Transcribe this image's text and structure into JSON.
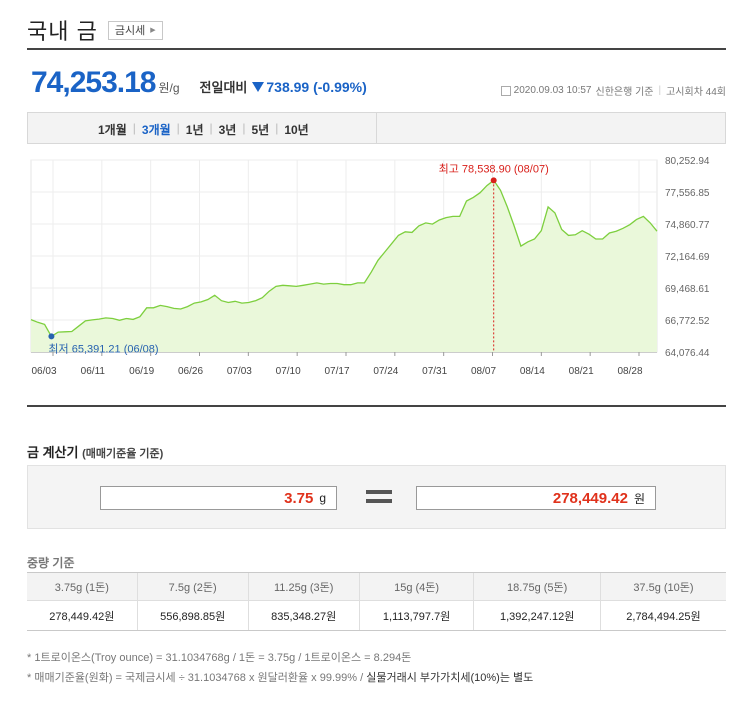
{
  "header": {
    "title": "국내 금",
    "link_label": "금시세"
  },
  "price": {
    "value": "74,253.18",
    "unit": "원/g",
    "compare_label": "전일대비",
    "compare_value": "738.99 (-0.99%)",
    "direction": "down",
    "timestamp": "2020.09.03 10:57",
    "source": "신한은행 기준",
    "round": "고시회차 44회"
  },
  "periods": [
    {
      "label": "1개월",
      "active": false
    },
    {
      "label": "3개월",
      "active": true
    },
    {
      "label": "1년",
      "active": false
    },
    {
      "label": "3년",
      "active": false
    },
    {
      "label": "5년",
      "active": false
    },
    {
      "label": "10년",
      "active": false
    }
  ],
  "chart_data": {
    "type": "area",
    "x_labels": [
      "06/03",
      "06/11",
      "06/19",
      "06/26",
      "07/03",
      "07/10",
      "07/17",
      "07/24",
      "07/31",
      "08/07",
      "08/14",
      "08/21",
      "08/28"
    ],
    "y_ticks": [
      "80,252.94",
      "77,556.85",
      "74,860.77",
      "72,164.69",
      "69,468.61",
      "66,772.52",
      "64,076.44"
    ],
    "ylim": [
      64076.44,
      80252.94
    ],
    "values": [
      66810,
      66580,
      66400,
      65391.21,
      65750,
      65780,
      65800,
      66250,
      66700,
      66780,
      66850,
      66950,
      66900,
      66750,
      66900,
      66820,
      67050,
      67800,
      67800,
      68000,
      67900,
      67750,
      67700,
      67900,
      68200,
      68300,
      68500,
      68850,
      68400,
      68250,
      68350,
      68200,
      68250,
      68400,
      68650,
      69200,
      69600,
      69700,
      69650,
      69600,
      69700,
      69800,
      69900,
      69800,
      69850,
      69850,
      69750,
      69750,
      69900,
      69900,
      70800,
      71800,
      72500,
      73200,
      73900,
      74200,
      74150,
      74700,
      74950,
      74850,
      75200,
      75400,
      75500,
      75500,
      76800,
      77100,
      77500,
      78100,
      78538.9,
      77700,
      76300,
      74700,
      73000,
      73350,
      73600,
      74300,
      76300,
      75800,
      74400,
      73900,
      73950,
      74300,
      74000,
      73600,
      73600,
      74100,
      74250,
      74500,
      74800,
      75250,
      75500,
      74950,
      74253.18
    ],
    "max_label": "최고 78,538.90 (08/07)",
    "min_label": "최저 65,391.21 (06/08)",
    "max_index": 68,
    "min_index": 3,
    "fill_color": "#eaf8da",
    "line_color": "#7dcf3e",
    "max_color": "#d9201b",
    "min_color": "#2762b0",
    "grid": true
  },
  "calculator": {
    "title": "금 계산기",
    "subtitle": "(매매기준율 기준)",
    "input_value": "3.75",
    "input_unit": "g",
    "result_value": "278,449.42",
    "result_unit": "원"
  },
  "weights": {
    "title": "중량 기준",
    "headers": [
      "3.75g (1돈)",
      "7.5g (2돈)",
      "11.25g (3돈)",
      "15g (4돈)",
      "18.75g (5돈)",
      "37.5g (10돈)"
    ],
    "values": [
      "278,449.42원",
      "556,898.85원",
      "835,348.27원",
      "1,113,797.7원",
      "1,392,247.12원",
      "2,784,494.25원"
    ]
  },
  "notes": {
    "line1": "* 1트로이온스(Troy ounce) = 31.1034768g / 1돈 = 3.75g / 1트로이온스 = 8.294돈",
    "line2": "* 매매기준율(원화) = 국제금시세 ÷ 31.1034768 x 원달러환율 x 99.99% / ",
    "line2_emph": "실물거래시 부가가치세(10%)는 별도"
  }
}
